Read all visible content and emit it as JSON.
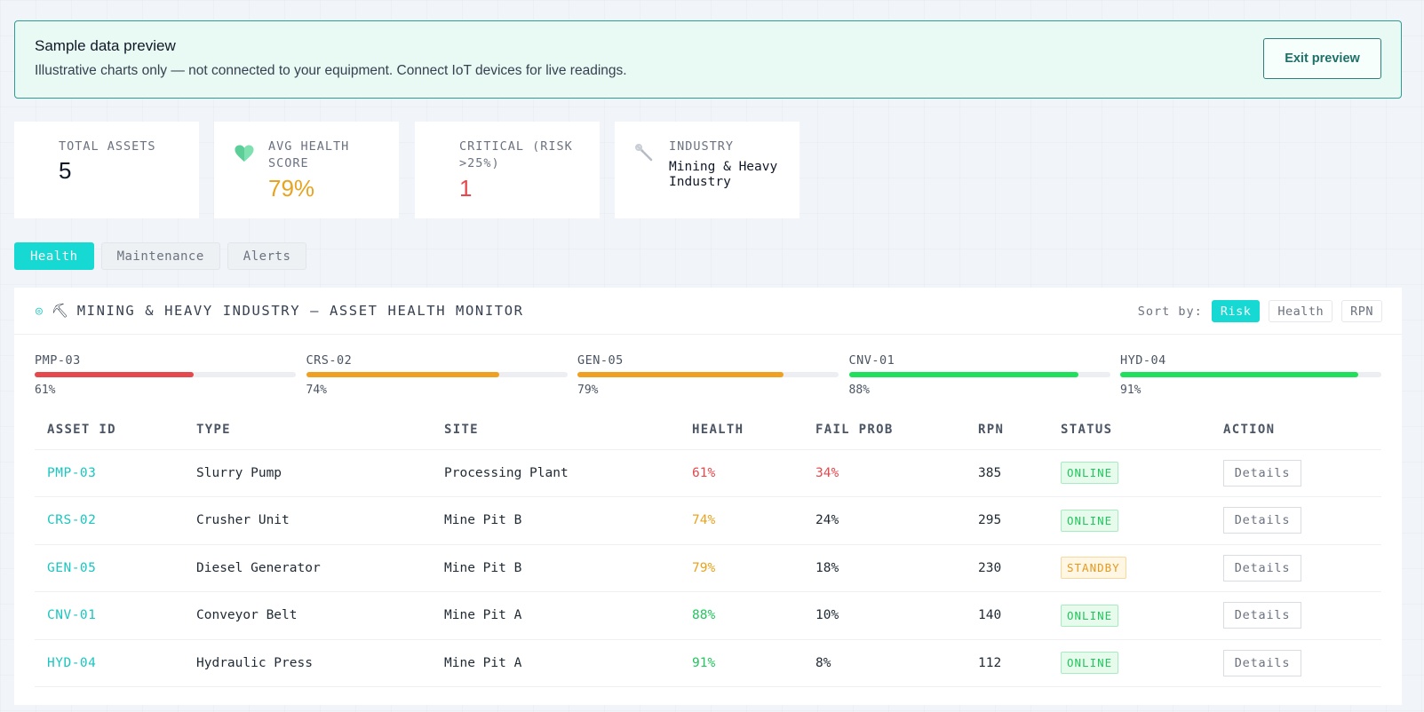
{
  "banner": {
    "title": "Sample data preview",
    "description": "Illustrative charts only — not connected to your equipment. Connect IoT devices for live readings.",
    "exit_label": "Exit preview"
  },
  "stats": {
    "total_assets": {
      "label": "TOTAL ASSETS",
      "value": "5"
    },
    "avg_health": {
      "label": "AVG HEALTH SCORE",
      "value": "79%",
      "icon": "heart-icon",
      "color": "#e8a31f"
    },
    "critical": {
      "label": "CRITICAL (RISK >25%)",
      "value": "1",
      "color": "#e5484d"
    },
    "industry": {
      "label": "INDUSTRY",
      "value": "Mining & Heavy Industry",
      "icon": "wrench-icon"
    }
  },
  "tabs": [
    {
      "label": "Health",
      "active": true
    },
    {
      "label": "Maintenance",
      "active": false
    },
    {
      "label": "Alerts",
      "active": false
    }
  ],
  "panel": {
    "title_icon": "pickaxe-icon",
    "title": "MINING & HEAVY INDUSTRY — ASSET HEALTH MONITOR",
    "sort_label": "Sort by:",
    "sort_options": [
      "Risk",
      "Health",
      "RPN"
    ],
    "sort_active": "Risk"
  },
  "health_bars": [
    {
      "id": "PMP-03",
      "value": 61,
      "label": "61%",
      "color": "#e5484d"
    },
    {
      "id": "CRS-02",
      "value": 74,
      "label": "74%",
      "color": "#f0a020"
    },
    {
      "id": "GEN-05",
      "value": 79,
      "label": "79%",
      "color": "#f0a020"
    },
    {
      "id": "CNV-01",
      "value": 88,
      "label": "88%",
      "color": "#1ee05a"
    },
    {
      "id": "HYD-04",
      "value": 91,
      "label": "91%",
      "color": "#1ee05a"
    }
  ],
  "table": {
    "headers": [
      "ASSET ID",
      "TYPE",
      "SITE",
      "HEALTH",
      "FAIL PROB",
      "RPN",
      "STATUS",
      "ACTION"
    ],
    "rows": [
      {
        "id": "PMP-03",
        "type": "Slurry Pump",
        "site": "Processing Plant",
        "health": "61%",
        "health_color": "#e5484d",
        "fail": "34%",
        "fail_color": "#e5484d",
        "rpn": "385",
        "status": "ONLINE",
        "action": "Details"
      },
      {
        "id": "CRS-02",
        "type": "Crusher Unit",
        "site": "Mine Pit B",
        "health": "74%",
        "health_color": "#e8a31f",
        "fail": "24%",
        "fail_color": "#1f2933",
        "rpn": "295",
        "status": "ONLINE",
        "action": "Details"
      },
      {
        "id": "GEN-05",
        "type": "Diesel Generator",
        "site": "Mine Pit B",
        "health": "79%",
        "health_color": "#e8a31f",
        "fail": "18%",
        "fail_color": "#1f2933",
        "rpn": "230",
        "status": "STANDBY",
        "action": "Details"
      },
      {
        "id": "CNV-01",
        "type": "Conveyor Belt",
        "site": "Mine Pit A",
        "health": "88%",
        "health_color": "#22c55e",
        "fail": "10%",
        "fail_color": "#1f2933",
        "rpn": "140",
        "status": "ONLINE",
        "action": "Details"
      },
      {
        "id": "HYD-04",
        "type": "Hydraulic Press",
        "site": "Mine Pit A",
        "health": "91%",
        "health_color": "#22c55e",
        "fail": "8%",
        "fail_color": "#1f2933",
        "rpn": "112",
        "status": "ONLINE",
        "action": "Details"
      }
    ]
  }
}
